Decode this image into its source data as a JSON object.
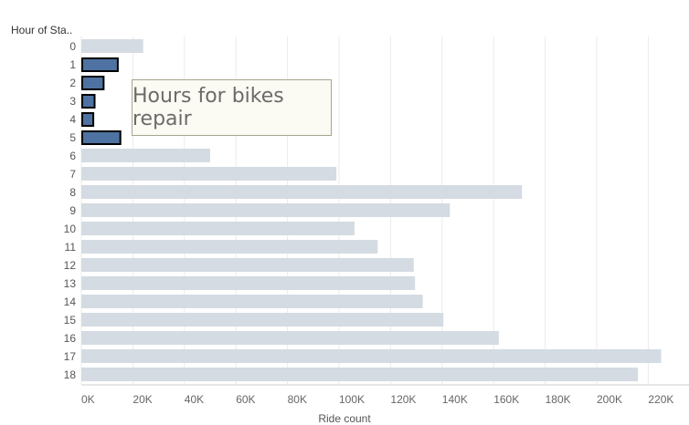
{
  "header": {
    "row_label": "Hour of Sta.."
  },
  "annotation": {
    "text": "Hours for bikes repair"
  },
  "chart_data": {
    "type": "bar",
    "orientation": "horizontal",
    "title": "",
    "ylabel": "Hour of Sta..",
    "xlabel": "Ride count",
    "categories": [
      "0",
      "1",
      "2",
      "3",
      "4",
      "5",
      "6",
      "7",
      "8",
      "9",
      "10",
      "11",
      "12",
      "13",
      "14",
      "15",
      "16",
      "17",
      "18"
    ],
    "values": [
      24000,
      14500,
      9000,
      5500,
      5000,
      15500,
      50000,
      99000,
      171000,
      143000,
      106000,
      115000,
      129000,
      129500,
      132500,
      140500,
      162000,
      225000,
      216000
    ],
    "highlighted_categories": [
      "1",
      "2",
      "3",
      "4",
      "5"
    ],
    "xlim": [
      0,
      230000
    ],
    "x_ticks": [
      0,
      20000,
      40000,
      60000,
      80000,
      100000,
      120000,
      140000,
      160000,
      180000,
      200000,
      220000
    ],
    "x_tick_labels": [
      "0K",
      "20K",
      "40K",
      "60K",
      "80K",
      "100K",
      "120K",
      "140K",
      "160K",
      "180K",
      "200K",
      "220K"
    ],
    "grid": true,
    "colors": {
      "bar": "#d4dbe2",
      "highlight": "#4e73a2",
      "highlight_border": "#000000",
      "grid": "#ebebeb",
      "axis": "#cfcfcf"
    }
  }
}
